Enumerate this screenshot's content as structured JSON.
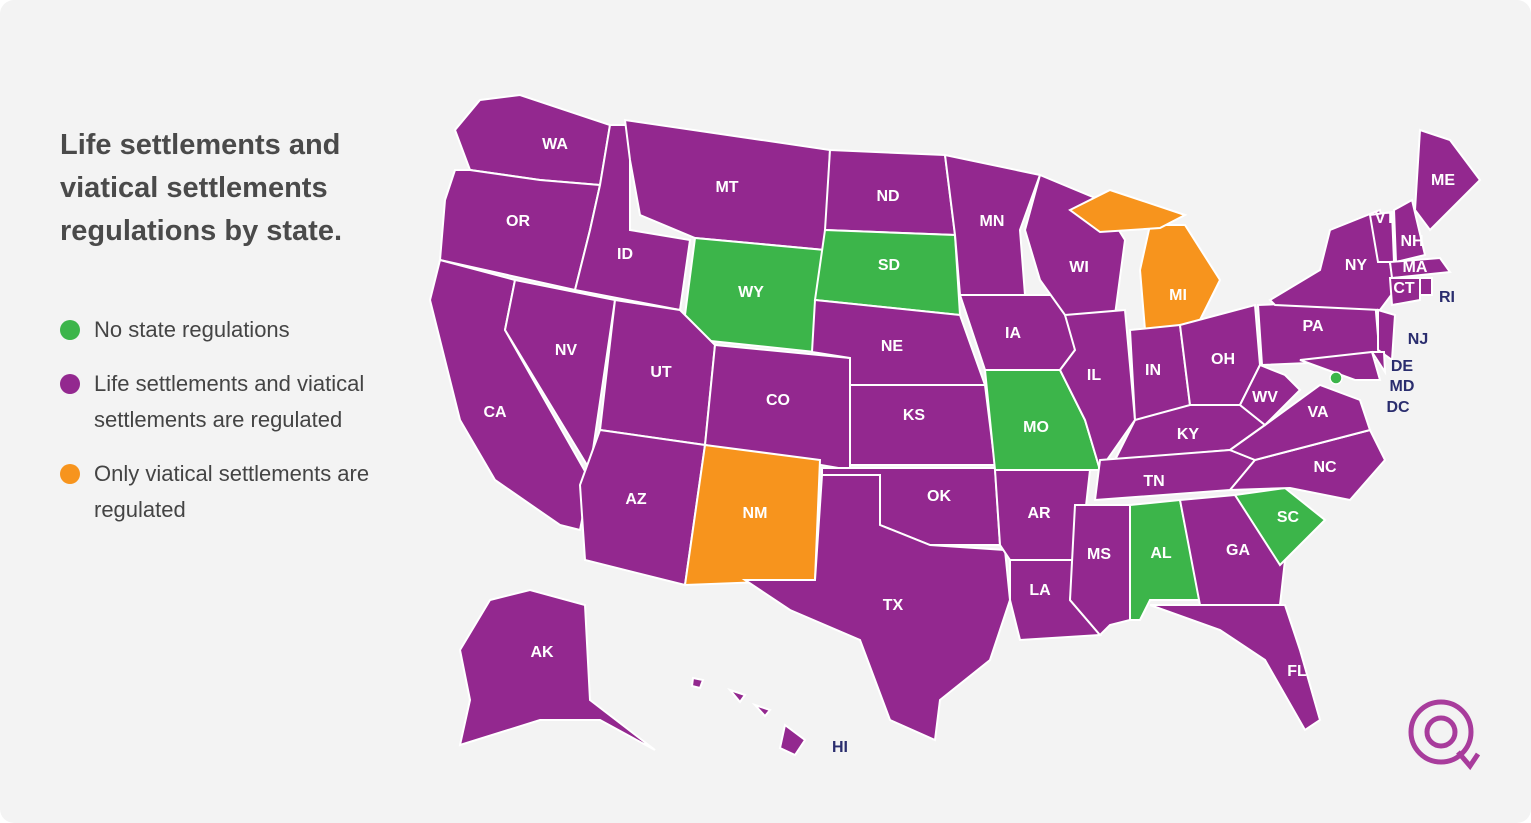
{
  "title": "Life settlements and viatical settlements regulations by state.",
  "legend": [
    {
      "label": "No state regulations",
      "color": "#3cb54a"
    },
    {
      "label": "Life settlements and viatical settlements are regulated",
      "color": "#93288f"
    },
    {
      "label": "Only viatical settlements are regulated",
      "color": "#f7941d"
    }
  ],
  "states": [
    {
      "label": "WA",
      "color": "#93288f"
    },
    {
      "label": "OR",
      "color": "#93288f"
    },
    {
      "label": "CA",
      "color": "#93288f"
    },
    {
      "label": "NV",
      "color": "#93288f"
    },
    {
      "label": "ID",
      "color": "#93288f"
    },
    {
      "label": "MT",
      "color": "#93288f"
    },
    {
      "label": "WY",
      "color": "#3cb54a"
    },
    {
      "label": "UT",
      "color": "#93288f"
    },
    {
      "label": "CO",
      "color": "#93288f"
    },
    {
      "label": "AZ",
      "color": "#93288f"
    },
    {
      "label": "NM",
      "color": "#f7941d"
    },
    {
      "label": "ND",
      "color": "#93288f"
    },
    {
      "label": "SD",
      "color": "#3cb54a"
    },
    {
      "label": "NE",
      "color": "#93288f"
    },
    {
      "label": "KS",
      "color": "#93288f"
    },
    {
      "label": "OK",
      "color": "#93288f"
    },
    {
      "label": "TX",
      "color": "#93288f"
    },
    {
      "label": "MN",
      "color": "#93288f"
    },
    {
      "label": "IA",
      "color": "#93288f"
    },
    {
      "label": "MO",
      "color": "#3cb54a"
    },
    {
      "label": "AR",
      "color": "#93288f"
    },
    {
      "label": "LA",
      "color": "#93288f"
    },
    {
      "label": "WI",
      "color": "#93288f"
    },
    {
      "label": "IL",
      "color": "#93288f"
    },
    {
      "label": "MI",
      "color": "#f7941d"
    },
    {
      "label": "IN",
      "color": "#93288f"
    },
    {
      "label": "OH",
      "color": "#93288f"
    },
    {
      "label": "KY",
      "color": "#93288f"
    },
    {
      "label": "TN",
      "color": "#93288f"
    },
    {
      "label": "MS",
      "color": "#93288f"
    },
    {
      "label": "AL",
      "color": "#3cb54a"
    },
    {
      "label": "GA",
      "color": "#93288f"
    },
    {
      "label": "FL",
      "color": "#93288f"
    },
    {
      "label": "SC",
      "color": "#3cb54a"
    },
    {
      "label": "NC",
      "color": "#93288f"
    },
    {
      "label": "VA",
      "color": "#93288f"
    },
    {
      "label": "WV",
      "color": "#93288f"
    },
    {
      "label": "PA",
      "color": "#93288f"
    },
    {
      "label": "NY",
      "color": "#93288f"
    },
    {
      "label": "ME",
      "color": "#93288f"
    },
    {
      "label": "VT",
      "color": "#93288f"
    },
    {
      "label": "NH",
      "color": "#93288f"
    },
    {
      "label": "MA",
      "color": "#93288f"
    },
    {
      "label": "CT",
      "color": "#93288f"
    },
    {
      "label": "RI",
      "color": "#93288f"
    },
    {
      "label": "NJ",
      "color": "#93288f"
    },
    {
      "label": "DE",
      "color": "#93288f"
    },
    {
      "label": "MD",
      "color": "#93288f"
    },
    {
      "label": "DC",
      "color": "#3cb54a"
    },
    {
      "label": "AK",
      "color": "#93288f"
    },
    {
      "label": "HI",
      "color": "#93288f"
    }
  ]
}
